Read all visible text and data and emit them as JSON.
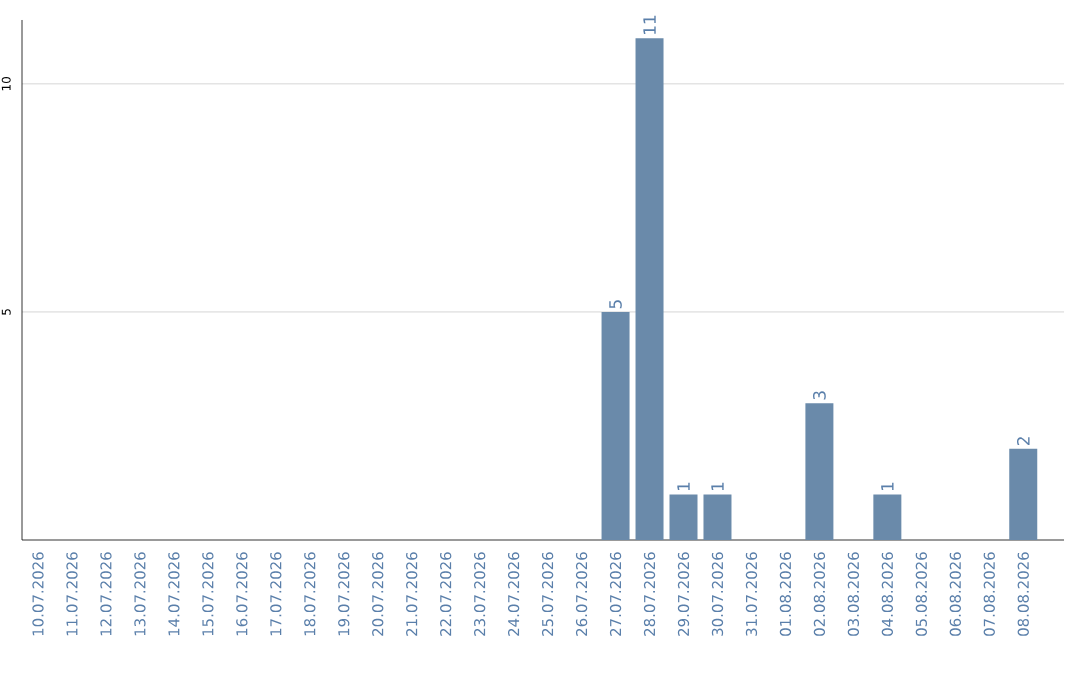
{
  "chart_data": {
    "type": "bar",
    "categories": [
      "10.07.2026",
      "11.07.2026",
      "12.07.2026",
      "13.07.2026",
      "14.07.2026",
      "15.07.2026",
      "16.07.2026",
      "17.07.2026",
      "18.07.2026",
      "19.07.2026",
      "20.07.2026",
      "21.07.2026",
      "22.07.2026",
      "23.07.2026",
      "24.07.2026",
      "25.07.2026",
      "26.07.2026",
      "27.07.2026",
      "28.07.2026",
      "29.07.2026",
      "30.07.2026",
      "31.07.2026",
      "01.08.2026",
      "02.08.2026",
      "03.08.2026",
      "04.08.2026",
      "05.08.2026",
      "06.08.2026",
      "07.08.2026",
      "08.08.2026"
    ],
    "values": [
      0,
      0,
      0,
      0,
      0,
      0,
      0,
      0,
      0,
      0,
      0,
      0,
      0,
      0,
      0,
      0,
      0,
      5,
      11,
      1,
      1,
      0,
      0,
      3,
      0,
      1,
      0,
      0,
      0,
      2
    ],
    "value_labels": [
      null,
      null,
      null,
      null,
      null,
      null,
      null,
      null,
      null,
      null,
      null,
      null,
      null,
      null,
      null,
      null,
      null,
      "5",
      "11",
      "1",
      "1",
      null,
      null,
      "3",
      null,
      "1",
      null,
      null,
      null,
      "2"
    ],
    "color": "#6a8aaa",
    "ylim": [
      0,
      11.4
    ],
    "yticks": [
      5,
      10
    ],
    "grid": "y"
  }
}
